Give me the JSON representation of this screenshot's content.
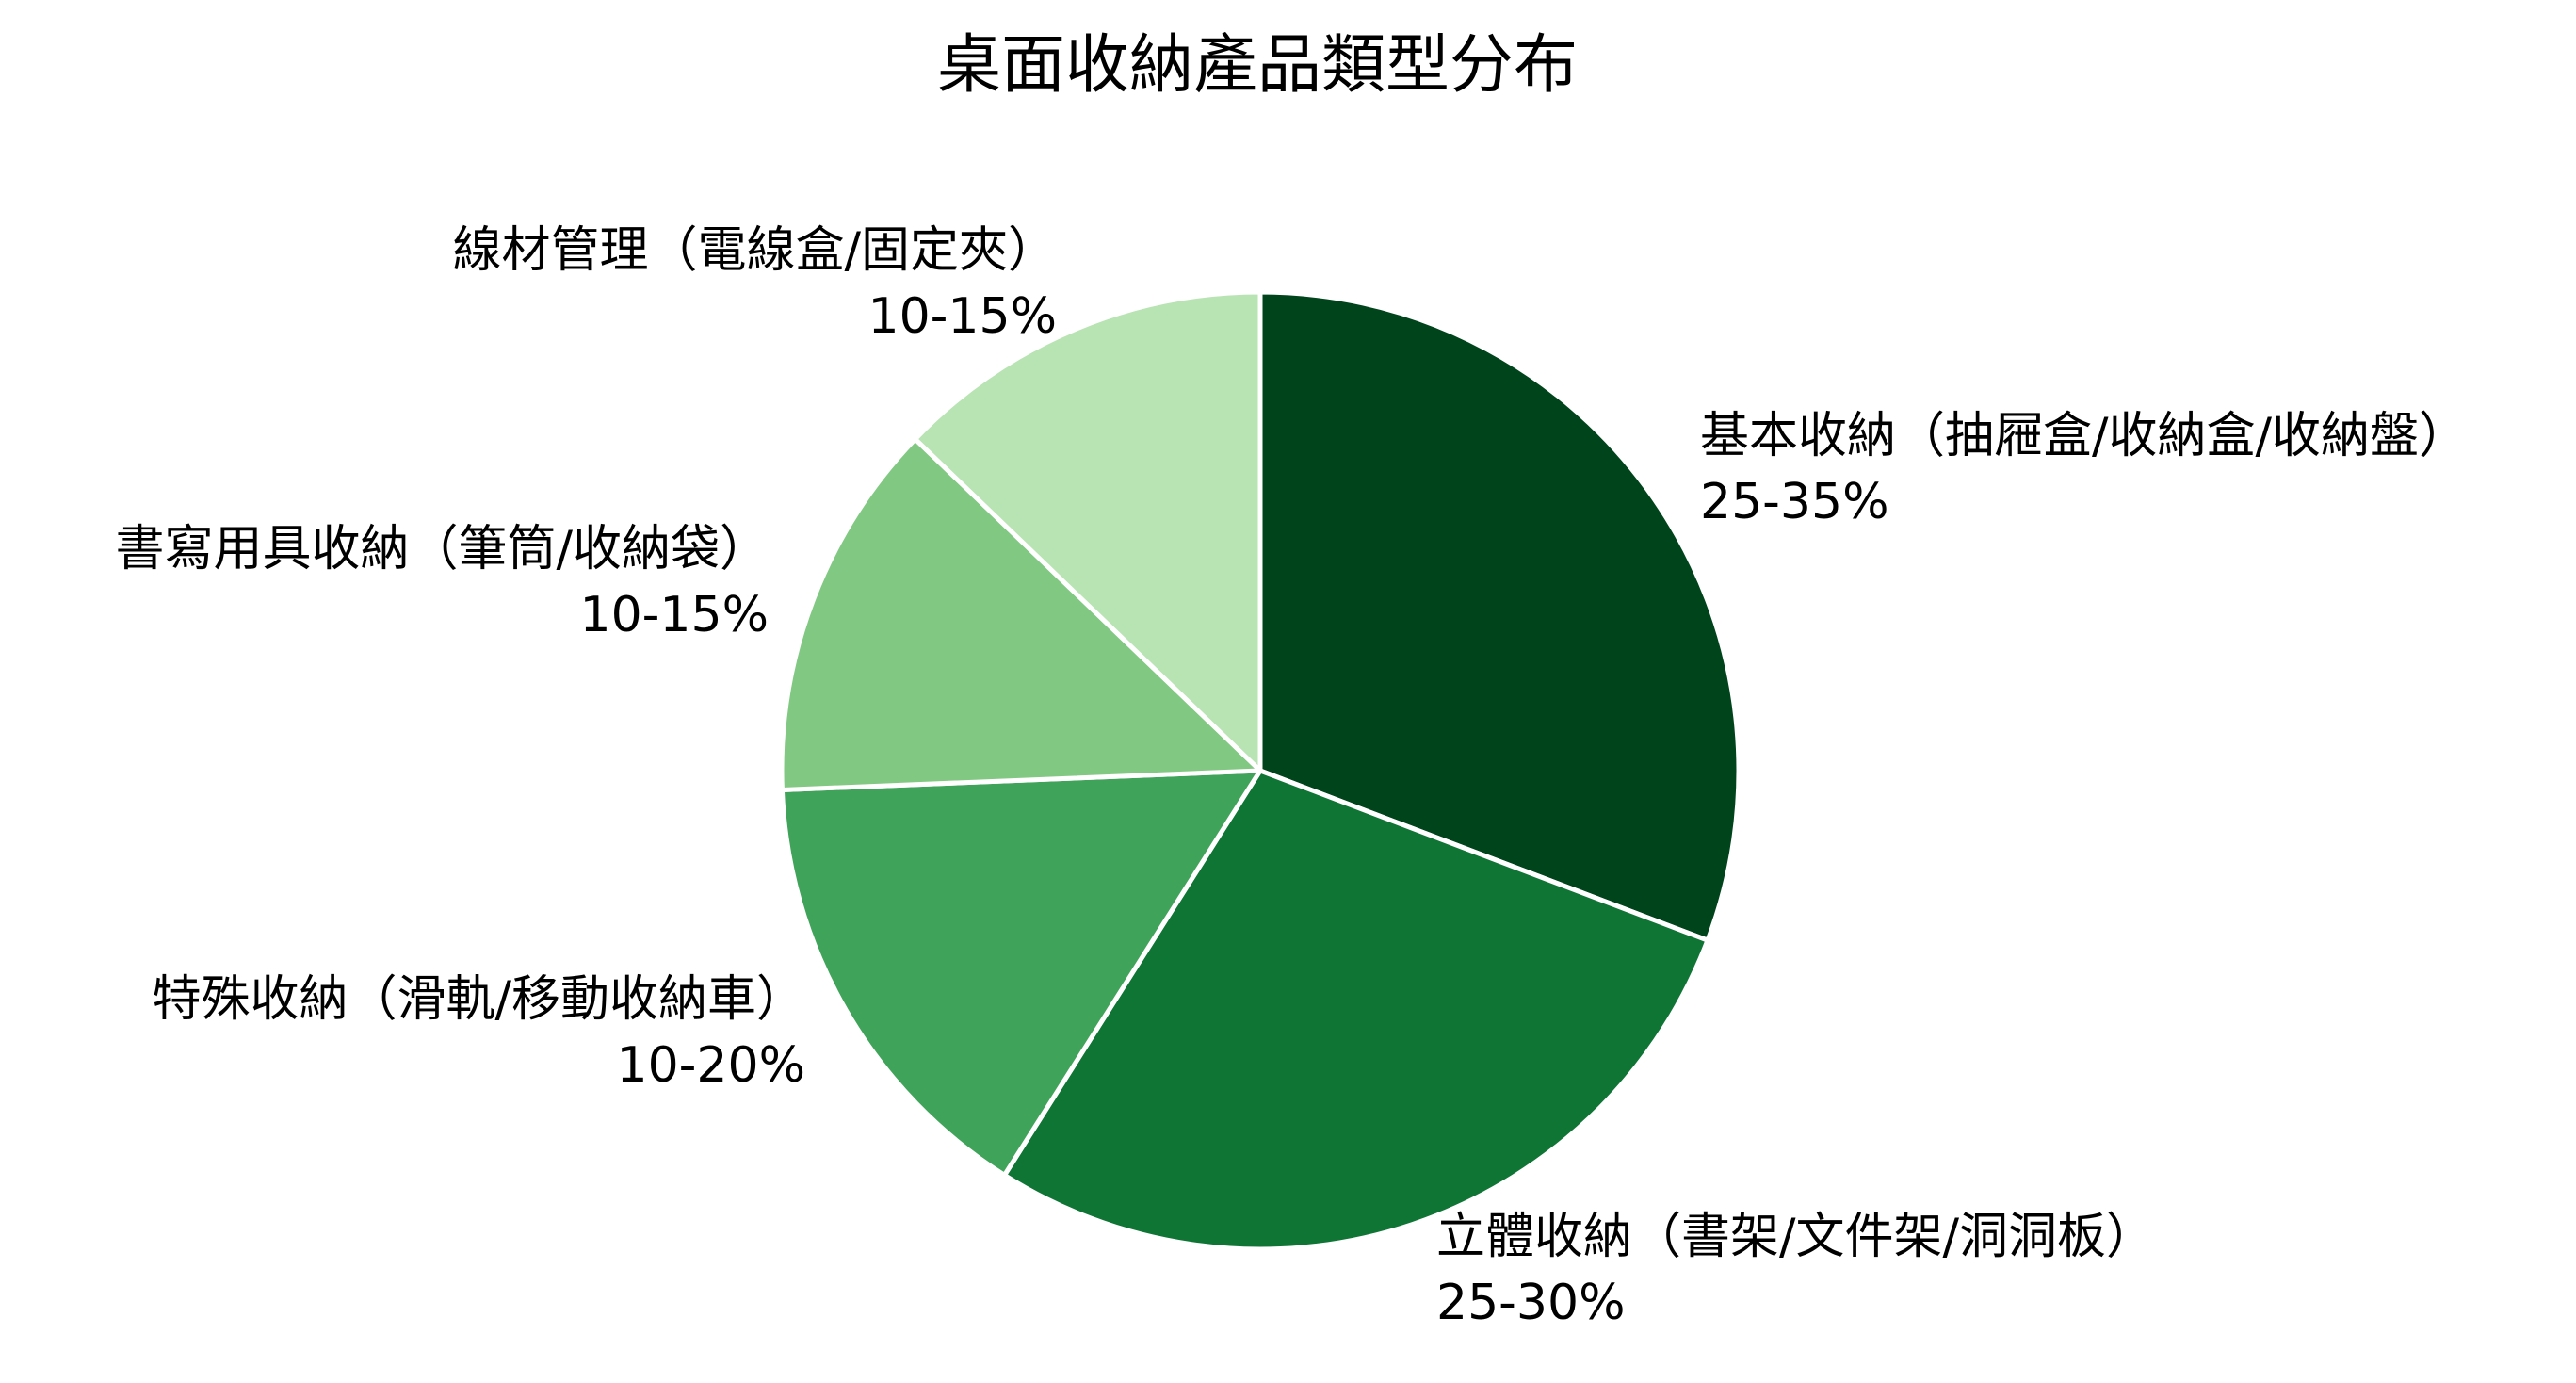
{
  "chart_data": {
    "type": "pie",
    "title": "桌面收納產品類型分布",
    "slices": [
      {
        "label": "基本收納（抽屜盒/收納盒/收納盤）",
        "range": "25-35%",
        "value": 30,
        "color": "#00441b"
      },
      {
        "label": "立體收納（書架/文件架/洞洞板）",
        "range": "25-30%",
        "value": 27.5,
        "color": "#0f7535"
      },
      {
        "label": "特殊收納（滑軌/移動收納車）",
        "range": "10-20%",
        "value": 15,
        "color": "#3fa45a"
      },
      {
        "label": "書寫用具收納（筆筒/收納袋）",
        "range": "10-15%",
        "value": 12.5,
        "color": "#81c882"
      },
      {
        "label": "線材管理（電線盒/固定夾）",
        "range": "10-15%",
        "value": 12.5,
        "color": "#b8e3b3"
      }
    ],
    "start": "top",
    "direction": "clockwise",
    "legend": "none"
  }
}
